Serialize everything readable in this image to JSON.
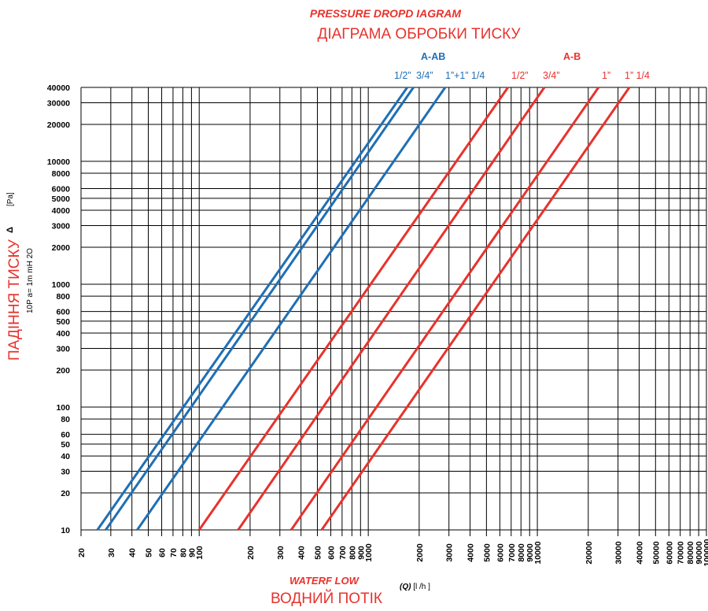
{
  "title_en": "PRESSURE DROPD IAGRAM",
  "title_ua": "ДІАГРАМА ОБРОБКИ ТИСКУ",
  "legend": {
    "blue_group": "A-AB",
    "red_group": "A-B",
    "blue_sizes": [
      "1/2”",
      "3/4”",
      "1”+1” 1/4"
    ],
    "red_sizes": [
      "1/2”",
      "3/4”",
      "1”",
      "1” 1/4"
    ]
  },
  "y_label_ua": "ПАДІННЯ ТИСКУ",
  "y_label_delta": "Δ",
  "y_label_unit": "[Pa]",
  "y_label_note": "10P a= 1m mH 2O",
  "x_label_en": "WATERF LOW",
  "x_label_ua": "ВОДНИЙ ПОТІК",
  "x_label_q": "(Q)",
  "x_label_unit": "[l /h ]",
  "colors": {
    "blue": "#1f6fb5",
    "red": "#e8322c",
    "grid": "#000000"
  },
  "chart_data": {
    "type": "line",
    "x_scale": "log",
    "y_scale": "log",
    "xlim": [
      20,
      100000
    ],
    "ylim": [
      10,
      40000
    ],
    "grid": true,
    "x_ticks": [
      20,
      30,
      40,
      50,
      60,
      70,
      80,
      90,
      100,
      200,
      300,
      400,
      500,
      600,
      700,
      800,
      900,
      1000,
      2000,
      3000,
      4000,
      5000,
      6000,
      7000,
      8000,
      9000,
      10000,
      20000,
      30000,
      40000,
      50000,
      60000,
      70000,
      80000,
      90000,
      100000
    ],
    "y_ticks": [
      10,
      20,
      30,
      40,
      50,
      60,
      80,
      100,
      200,
      300,
      400,
      500,
      600,
      800,
      1000,
      2000,
      3000,
      4000,
      5000,
      6000,
      8000,
      10000,
      20000,
      30000,
      40000
    ],
    "series": [
      {
        "name": "1/2”",
        "group": "A-AB",
        "color": "#1f6fb5",
        "x": [
          25,
          1700
        ],
        "y": [
          10,
          40000
        ]
      },
      {
        "name": "3/4”",
        "group": "A-AB",
        "color": "#1f6fb5",
        "x": [
          28,
          1850
        ],
        "y": [
          10,
          40000
        ]
      },
      {
        "name": "1”+1” 1/4",
        "group": "A-AB",
        "color": "#1f6fb5",
        "x": [
          43,
          2850
        ],
        "y": [
          10,
          40000
        ]
      },
      {
        "name": "1/2”",
        "group": "A-B",
        "color": "#e8322c",
        "x": [
          100,
          6700
        ],
        "y": [
          10,
          40000
        ]
      },
      {
        "name": "3/4”",
        "group": "A-B",
        "color": "#e8322c",
        "x": [
          170,
          11000
        ],
        "y": [
          10,
          40000
        ]
      },
      {
        "name": "1”",
        "group": "A-B",
        "color": "#e8322c",
        "x": [
          350,
          23000
        ],
        "y": [
          10,
          40000
        ]
      },
      {
        "name": "1” 1/4",
        "group": "A-B",
        "color": "#e8322c",
        "x": [
          530,
          35000
        ],
        "y": [
          10,
          40000
        ]
      }
    ]
  }
}
